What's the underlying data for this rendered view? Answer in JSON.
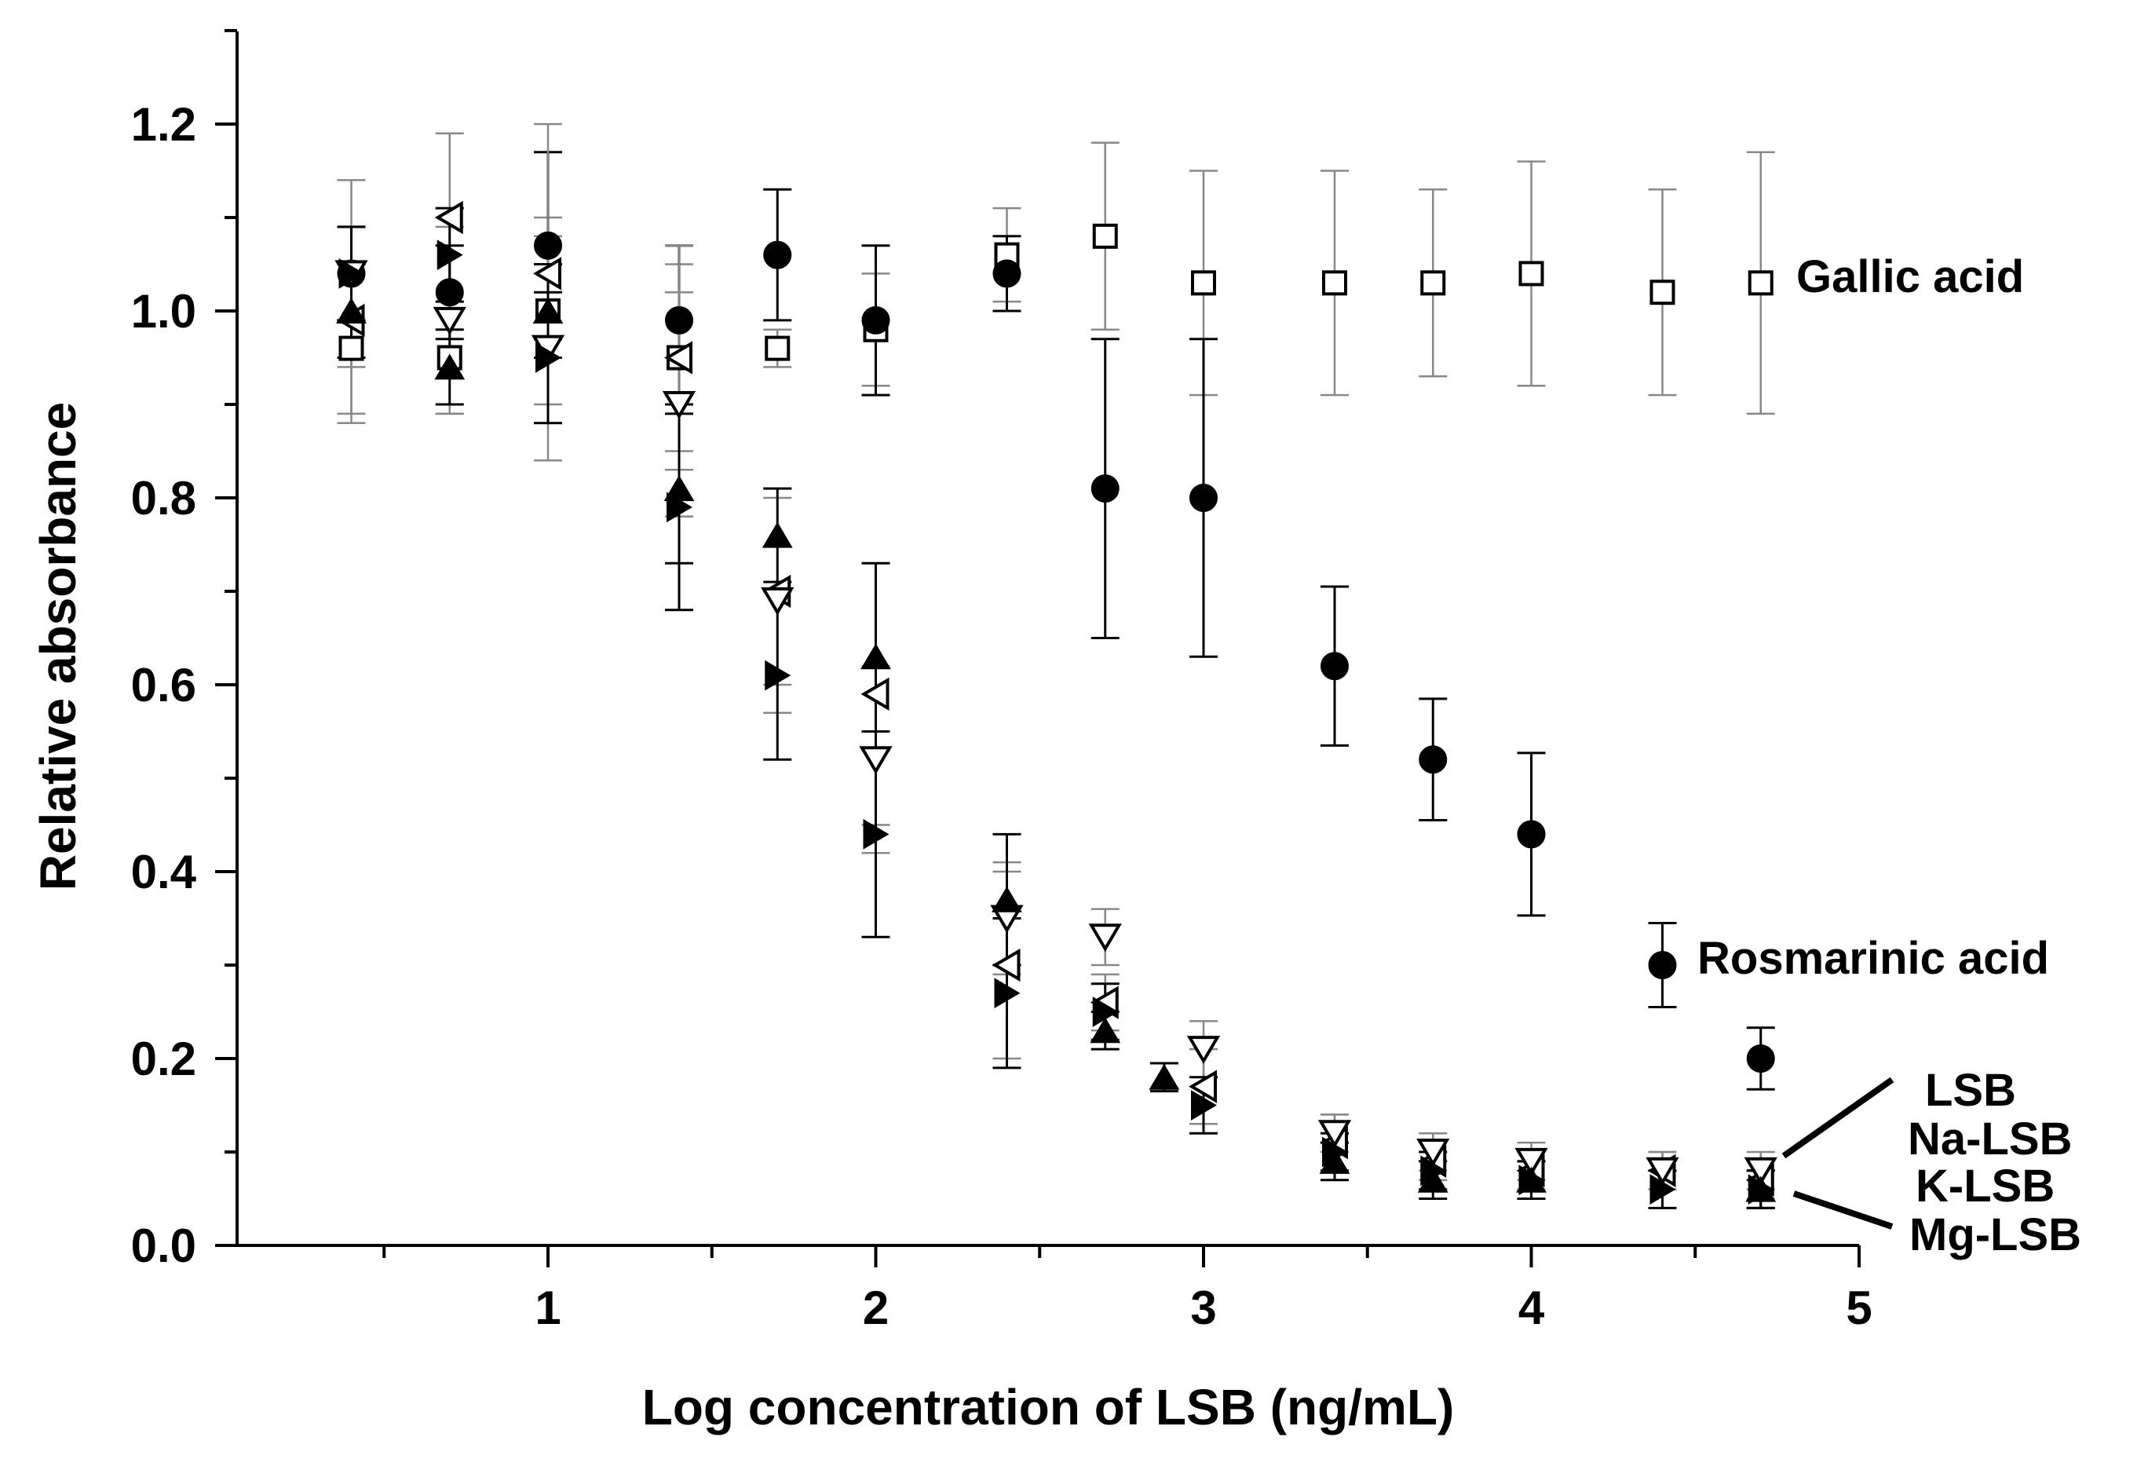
{
  "chart_data": {
    "type": "scatter",
    "title": "",
    "xlabel": "Log concentration of LSB (ng/mL)",
    "ylabel": "Relative absorbance",
    "xlim": [
      0,
      5
    ],
    "ylim": [
      0,
      1.3
    ],
    "x_ticks": [
      1,
      2,
      3,
      4,
      5
    ],
    "x_tick_labels": [
      "1",
      "2",
      "3",
      "4",
      "5"
    ],
    "y_ticks": [
      0.0,
      0.2,
      0.4,
      0.6,
      0.8,
      1.0,
      1.2
    ],
    "y_tick_labels": [
      "0.0",
      "0.2",
      "0.4",
      "0.6",
      "0.8",
      "1.0",
      "1.2"
    ],
    "grid": false,
    "series": [
      {
        "name": "Gallic acid",
        "label": "Gallic acid",
        "marker": "open-square",
        "error_color": "#888888",
        "x": [
          0.4,
          0.7,
          1.0,
          1.4,
          1.7,
          2.0,
          2.4,
          2.7,
          3.0,
          3.4,
          3.7,
          4.0,
          4.4,
          4.7
        ],
        "y": [
          0.96,
          0.95,
          1.0,
          0.95,
          0.96,
          0.98,
          1.06,
          1.08,
          1.03,
          1.03,
          1.03,
          1.04,
          1.02,
          1.03
        ],
        "err": [
          0.08,
          0.06,
          0.1,
          0.1,
          0.02,
          0.06,
          0.05,
          0.1,
          0.12,
          0.12,
          0.1,
          0.12,
          0.11,
          0.14
        ]
      },
      {
        "name": "Rosmarinic acid",
        "label": "Rosmarinic acid",
        "marker": "filled-circle",
        "error_color": "#000000",
        "x": [
          0.4,
          0.7,
          1.0,
          1.4,
          1.7,
          2.0,
          2.4,
          2.7,
          3.0,
          3.4,
          3.7,
          4.0,
          4.4,
          4.7
        ],
        "y": [
          1.04,
          1.02,
          1.07,
          0.99,
          1.06,
          0.99,
          1.04,
          0.81,
          0.8,
          0.62,
          0.52,
          0.44,
          0.3,
          0.2
        ],
        "err": [
          0.05,
          0.05,
          0.1,
          0.08,
          0.07,
          0.08,
          0.04,
          0.16,
          0.17,
          0.085,
          0.065,
          0.087,
          0.045,
          0.033
        ]
      },
      {
        "name": "LSB",
        "label": "LSB",
        "marker": "open-triangle-left",
        "error_color": "#888888",
        "x": [
          0.4,
          0.7,
          1.0,
          1.4,
          1.7,
          2.0,
          2.4,
          2.7,
          3.0,
          3.4,
          3.7,
          4.0,
          4.4,
          4.7
        ],
        "y": [
          0.99,
          1.1,
          1.04,
          0.95,
          0.7,
          0.59,
          0.3,
          0.26,
          0.17,
          0.11,
          0.09,
          0.08,
          0.08,
          0.07
        ],
        "err": [
          0.1,
          0.09,
          0.16,
          0.12,
          0.1,
          0.14,
          0.1,
          0.03,
          0.04,
          0.03,
          0.02,
          0.02,
          0.02,
          0.02
        ]
      },
      {
        "name": "Na-LSB",
        "label": "Na-LSB",
        "marker": "open-triangle-down",
        "error_color": "#888888",
        "x": [
          0.4,
          0.7,
          1.0,
          1.4,
          1.7,
          2.0,
          2.4,
          2.7,
          3.0,
          3.4,
          3.7,
          4.0,
          4.4,
          4.7
        ],
        "y": [
          1.04,
          0.99,
          0.96,
          0.9,
          0.69,
          0.52,
          0.35,
          0.33,
          0.21,
          0.12,
          0.1,
          0.09,
          0.08,
          0.08
        ],
        "err": [
          0.1,
          0.1,
          0.12,
          0.12,
          0.12,
          0.1,
          0.06,
          0.03,
          0.03,
          0.02,
          0.02,
          0.02,
          0.02,
          0.02
        ]
      },
      {
        "name": "K-LSB",
        "label": "K-LSB",
        "marker": "filled-triangle-right",
        "error_color": "#000000",
        "x": [
          0.4,
          0.7,
          1.0,
          1.4,
          1.7,
          2.0,
          2.4,
          2.7,
          3.0,
          3.4,
          3.7,
          4.0,
          4.4,
          4.7
        ],
        "y": [
          1.04,
          1.06,
          0.95,
          0.79,
          0.61,
          0.44,
          0.27,
          0.25,
          0.15,
          0.1,
          0.08,
          0.07,
          0.06,
          0.06
        ],
        "err": [
          0.05,
          0.05,
          0.07,
          0.11,
          0.09,
          0.11,
          0.08,
          0.03,
          0.03,
          0.02,
          0.02,
          0.02,
          0.02,
          0.02
        ]
      },
      {
        "name": "Mg-LSB",
        "label": "Mg-LSB",
        "marker": "filled-triangle-up",
        "error_color": "#000000",
        "x": [
          0.4,
          0.7,
          1.0,
          1.4,
          1.7,
          2.0,
          2.4,
          2.7,
          2.88,
          3.4,
          3.7,
          4.0,
          4.7
        ],
        "y": [
          1.0,
          0.94,
          1.0,
          0.81,
          0.76,
          0.63,
          0.37,
          0.23,
          0.18,
          0.09,
          0.07,
          0.07,
          0.06
        ],
        "err": [
          0.05,
          0.04,
          0.05,
          0.08,
          0.05,
          0.1,
          0.07,
          0.02,
          0.015,
          0.02,
          0.02,
          0.02,
          0.02
        ]
      }
    ]
  }
}
